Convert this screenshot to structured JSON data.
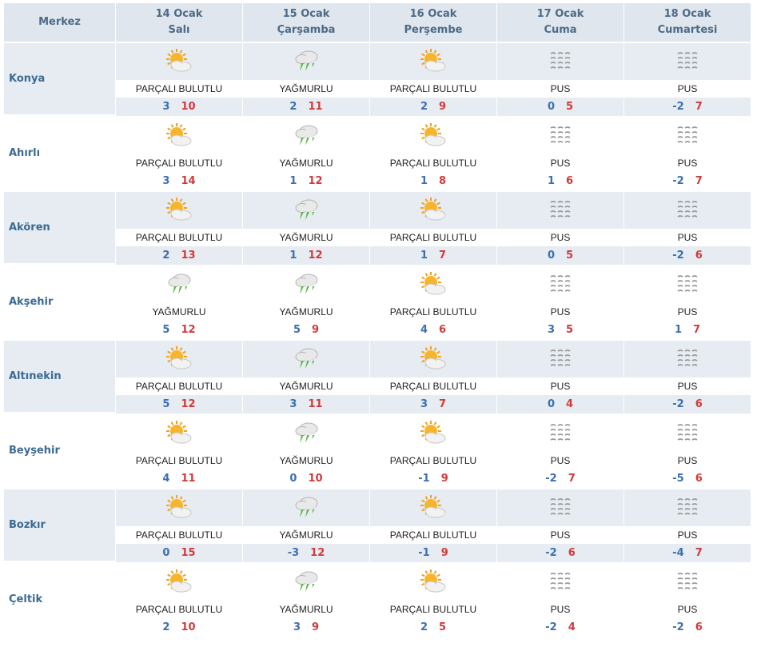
{
  "header": {
    "location_label": "Merkez",
    "days": [
      {
        "date": "14 Ocak",
        "weekday": "Salı"
      },
      {
        "date": "15 Ocak",
        "weekday": "Çarşamba"
      },
      {
        "date": "16 Ocak",
        "weekday": "Perşembe"
      },
      {
        "date": "17 Ocak",
        "weekday": "Cuma"
      },
      {
        "date": "18 Ocak",
        "weekday": "Cumartesi"
      }
    ]
  },
  "icons": {
    "PARÇALI BULUTLU": "partly-cloudy-icon",
    "YAĞMURLU": "rain-icon",
    "PUS": "fog-icon"
  },
  "colors": {
    "low": "#3c6fb0",
    "high": "#d13a3a",
    "row_shade": "#e6ecf2",
    "header_bg": "#dfe6ed"
  },
  "cities": [
    {
      "name": "Konya",
      "days": [
        {
          "cond": "PARÇALI BULUTLU",
          "lo": "3",
          "hi": "10"
        },
        {
          "cond": "YAĞMURLU",
          "lo": "2",
          "hi": "11"
        },
        {
          "cond": "PARÇALI BULUTLU",
          "lo": "2",
          "hi": "9"
        },
        {
          "cond": "PUS",
          "lo": "0",
          "hi": "5"
        },
        {
          "cond": "PUS",
          "lo": "-2",
          "hi": "7"
        }
      ]
    },
    {
      "name": "Ahırlı",
      "days": [
        {
          "cond": "PARÇALI BULUTLU",
          "lo": "3",
          "hi": "14"
        },
        {
          "cond": "YAĞMURLU",
          "lo": "1",
          "hi": "12"
        },
        {
          "cond": "PARÇALI BULUTLU",
          "lo": "1",
          "hi": "8"
        },
        {
          "cond": "PUS",
          "lo": "1",
          "hi": "6"
        },
        {
          "cond": "PUS",
          "lo": "-2",
          "hi": "7"
        }
      ]
    },
    {
      "name": "Akören",
      "days": [
        {
          "cond": "PARÇALI BULUTLU",
          "lo": "2",
          "hi": "13"
        },
        {
          "cond": "YAĞMURLU",
          "lo": "1",
          "hi": "12"
        },
        {
          "cond": "PARÇALI BULUTLU",
          "lo": "1",
          "hi": "7"
        },
        {
          "cond": "PUS",
          "lo": "0",
          "hi": "5"
        },
        {
          "cond": "PUS",
          "lo": "-2",
          "hi": "6"
        }
      ]
    },
    {
      "name": "Akşehir",
      "days": [
        {
          "cond": "YAĞMURLU",
          "lo": "5",
          "hi": "12"
        },
        {
          "cond": "YAĞMURLU",
          "lo": "5",
          "hi": "9"
        },
        {
          "cond": "PARÇALI BULUTLU",
          "lo": "4",
          "hi": "6"
        },
        {
          "cond": "PUS",
          "lo": "3",
          "hi": "5"
        },
        {
          "cond": "PUS",
          "lo": "1",
          "hi": "7"
        }
      ]
    },
    {
      "name": "Altınekin",
      "days": [
        {
          "cond": "PARÇALI BULUTLU",
          "lo": "5",
          "hi": "12"
        },
        {
          "cond": "YAĞMURLU",
          "lo": "3",
          "hi": "11"
        },
        {
          "cond": "PARÇALI BULUTLU",
          "lo": "3",
          "hi": "7"
        },
        {
          "cond": "PUS",
          "lo": "0",
          "hi": "4"
        },
        {
          "cond": "PUS",
          "lo": "-2",
          "hi": "6"
        }
      ]
    },
    {
      "name": "Beyşehir",
      "days": [
        {
          "cond": "PARÇALI BULUTLU",
          "lo": "4",
          "hi": "11"
        },
        {
          "cond": "YAĞMURLU",
          "lo": "0",
          "hi": "10"
        },
        {
          "cond": "PARÇALI BULUTLU",
          "lo": "-1",
          "hi": "9"
        },
        {
          "cond": "PUS",
          "lo": "-2",
          "hi": "7"
        },
        {
          "cond": "PUS",
          "lo": "-5",
          "hi": "6"
        }
      ]
    },
    {
      "name": "Bozkır",
      "days": [
        {
          "cond": "PARÇALI BULUTLU",
          "lo": "0",
          "hi": "15"
        },
        {
          "cond": "YAĞMURLU",
          "lo": "-3",
          "hi": "12"
        },
        {
          "cond": "PARÇALI BULUTLU",
          "lo": "-1",
          "hi": "9"
        },
        {
          "cond": "PUS",
          "lo": "-2",
          "hi": "6"
        },
        {
          "cond": "PUS",
          "lo": "-4",
          "hi": "7"
        }
      ]
    },
    {
      "name": "Çeltik",
      "days": [
        {
          "cond": "PARÇALI BULUTLU",
          "lo": "2",
          "hi": "10"
        },
        {
          "cond": "YAĞMURLU",
          "lo": "3",
          "hi": "9"
        },
        {
          "cond": "PARÇALI BULUTLU",
          "lo": "2",
          "hi": "5"
        },
        {
          "cond": "PUS",
          "lo": "-2",
          "hi": "4"
        },
        {
          "cond": "PUS",
          "lo": "-2",
          "hi": "6"
        }
      ]
    }
  ]
}
